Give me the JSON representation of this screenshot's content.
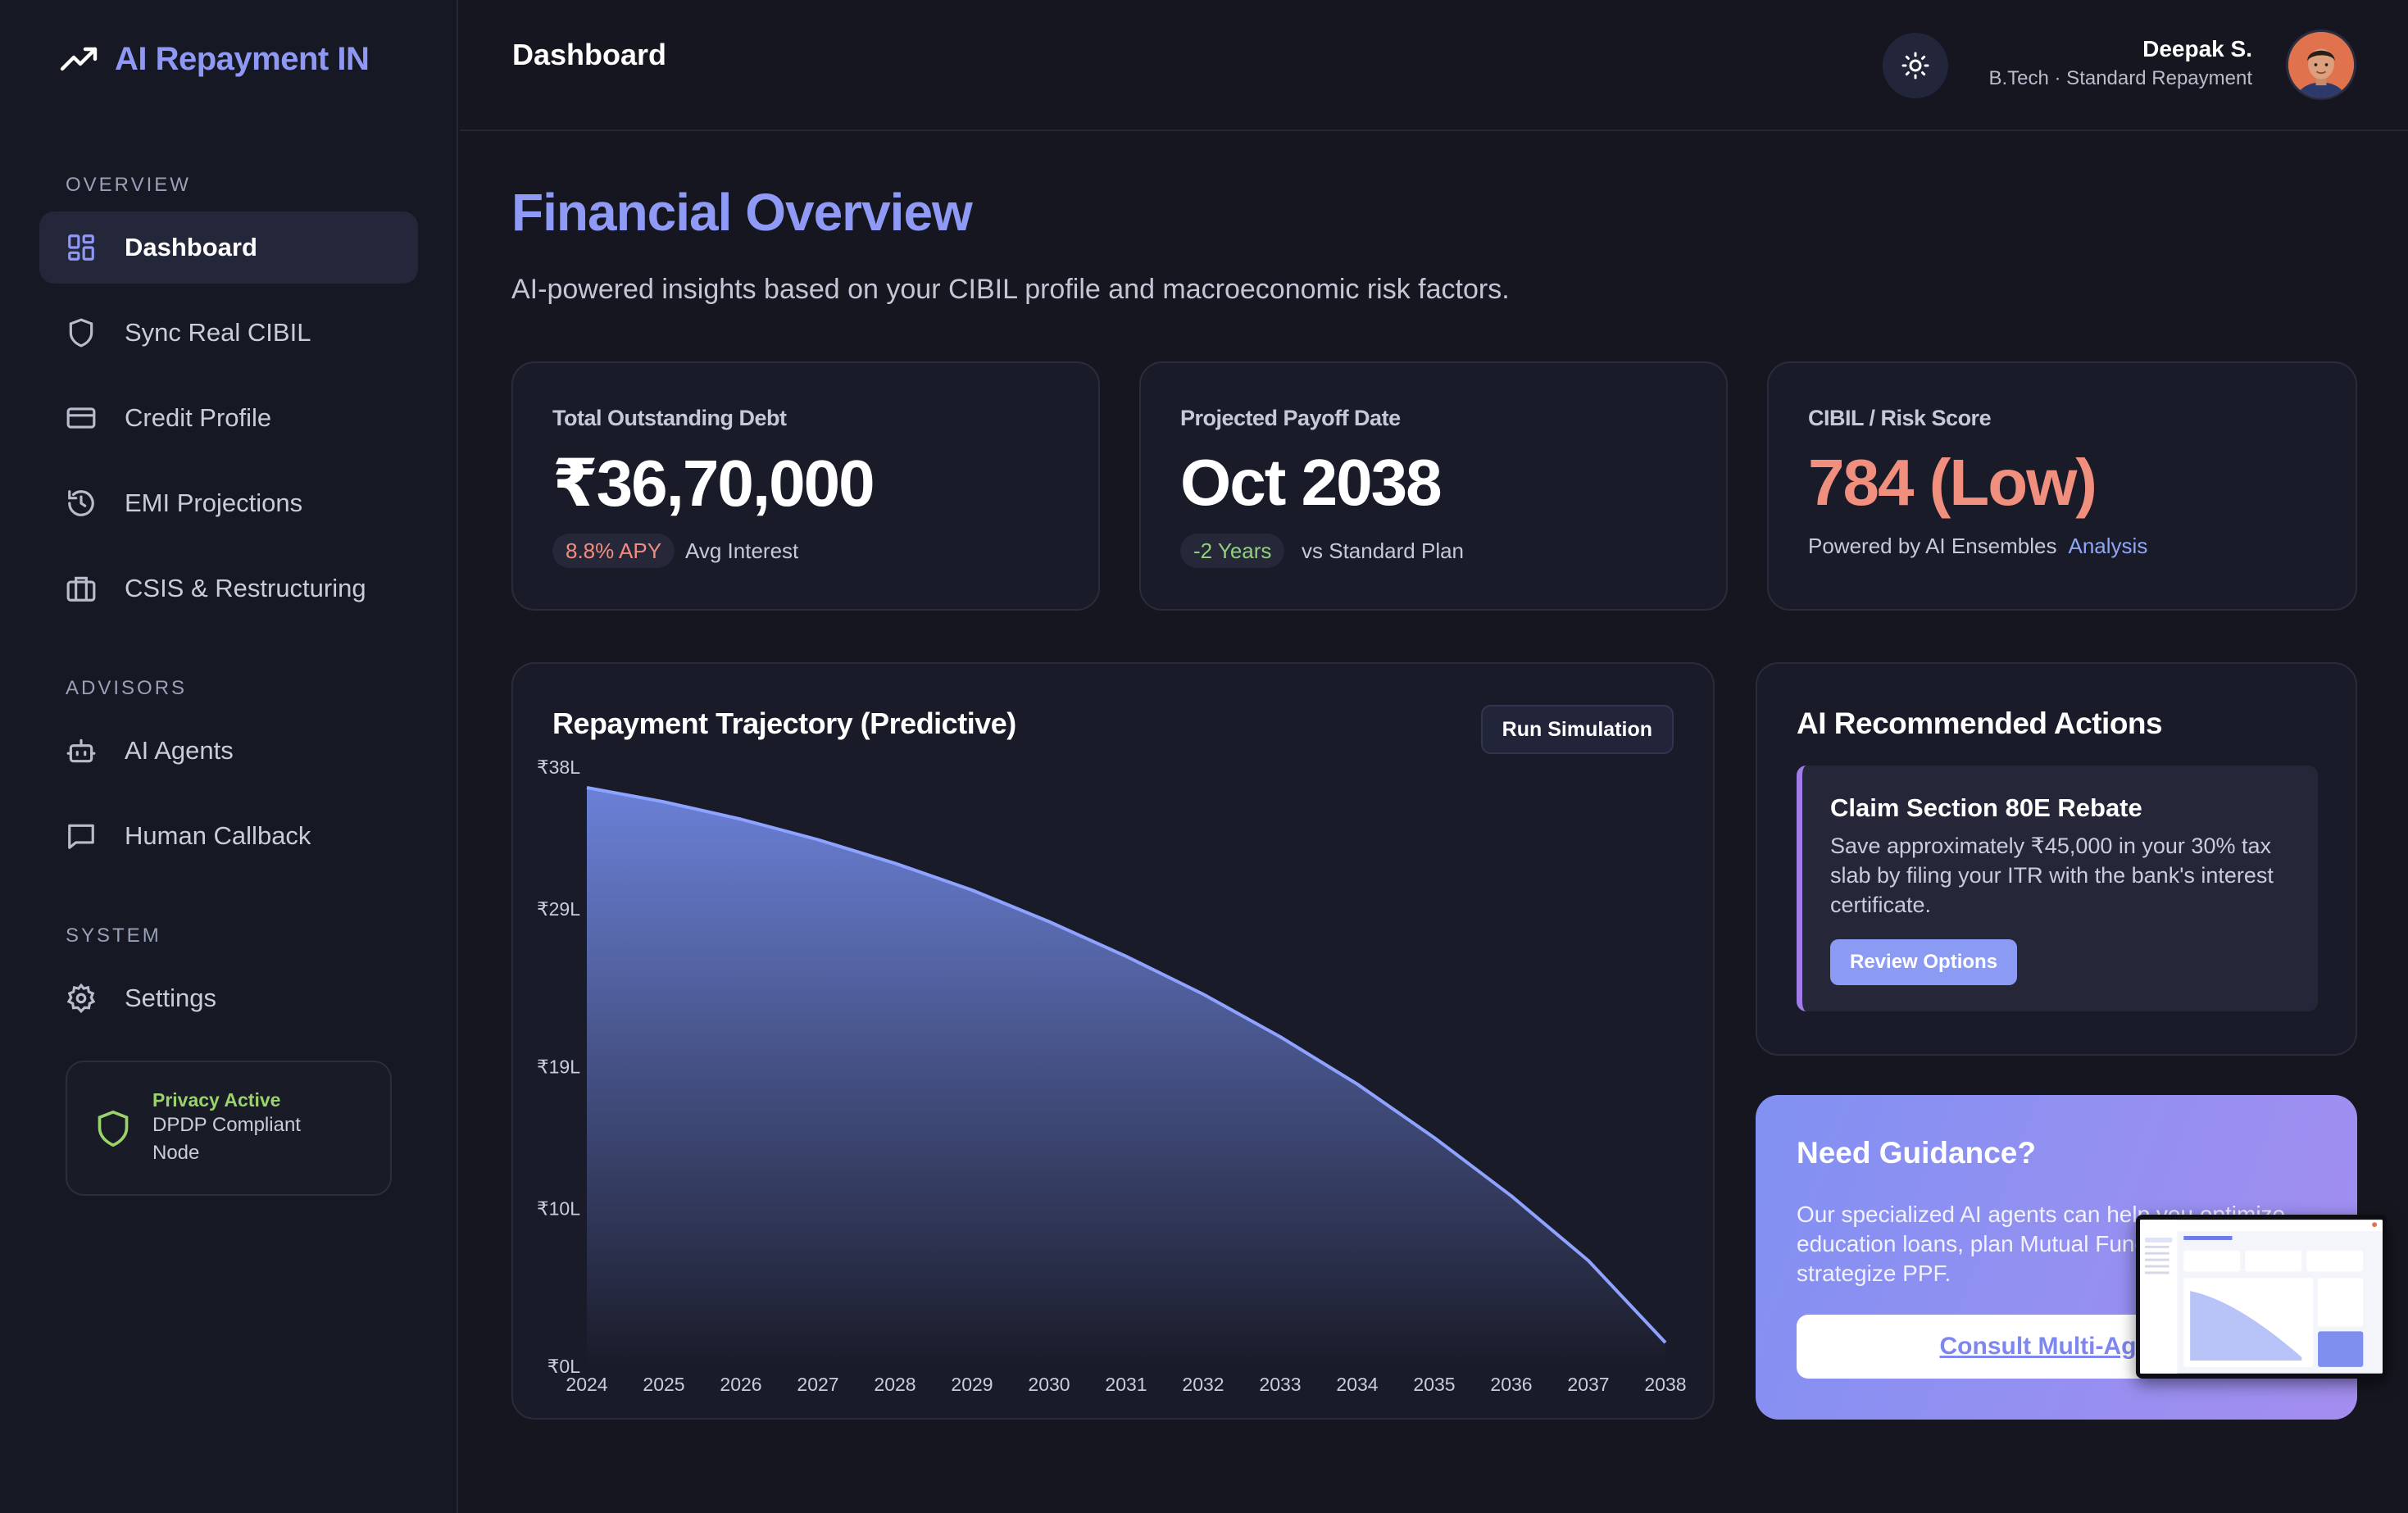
{
  "brand": {
    "name": "AI Repayment IN"
  },
  "sidebar": {
    "sections": [
      {
        "label": "OVERVIEW"
      },
      {
        "label": "ADVISORS"
      },
      {
        "label": "SYSTEM"
      }
    ],
    "items": [
      {
        "label": "Dashboard",
        "icon": "grid-icon",
        "active": true
      },
      {
        "label": "Sync Real CIBIL",
        "icon": "shield-icon"
      },
      {
        "label": "Credit Profile",
        "icon": "credit-card-icon"
      },
      {
        "label": "EMI Projections",
        "icon": "history-icon"
      },
      {
        "label": "CSIS & Restructuring",
        "icon": "briefcase-icon"
      },
      {
        "label": "AI Agents",
        "icon": "bot-icon"
      },
      {
        "label": "Human Callback",
        "icon": "message-icon"
      },
      {
        "label": "Settings",
        "icon": "gear-icon"
      }
    ],
    "privacy": {
      "title": "Privacy Active",
      "subtitle": "DPDP Compliant Node"
    }
  },
  "header": {
    "title": "Dashboard",
    "user": {
      "name": "Deepak S.",
      "subtitle": "B.Tech · Standard Repayment"
    }
  },
  "main": {
    "title": "Financial Overview",
    "subtitle": "AI-powered insights based on your CIBIL profile and macroeconomic risk factors."
  },
  "stats": [
    {
      "label": "Total Outstanding Debt",
      "value": "₹36,70,000",
      "pill": "8.8% APY",
      "note": "Avg Interest"
    },
    {
      "label": "Projected Payoff Date",
      "value": "Oct 2038",
      "pill": "-2 Years",
      "note": "vs Standard Plan"
    },
    {
      "label": "CIBIL / Risk Score",
      "value": "784 (Low)",
      "note": "Powered by AI Ensembles",
      "link": "Analysis"
    }
  ],
  "chart": {
    "title": "Repayment Trajectory (Predictive)",
    "button": "Run Simulation"
  },
  "chart_data": {
    "type": "area",
    "title": "Repayment Trajectory (Predictive)",
    "x": [
      2024,
      2025,
      2026,
      2027,
      2028,
      2029,
      2030,
      2031,
      2032,
      2033,
      2034,
      2035,
      2036,
      2037,
      2038
    ],
    "series": [
      {
        "values": [
          36.7,
          35.8,
          34.7,
          33.4,
          31.9,
          30.2,
          28.2,
          26.0,
          23.6,
          20.9,
          17.9,
          14.5,
          10.8,
          6.7,
          1.5
        ]
      }
    ],
    "x_tick_labels": [
      "2024",
      "2025",
      "2026",
      "2027",
      "2028",
      "2029",
      "2030",
      "2031",
      "2032",
      "2033",
      "2034",
      "2035",
      "2036",
      "2037",
      "2038"
    ],
    "y_ticks": [
      0,
      10,
      19,
      29,
      38
    ],
    "y_tick_labels": [
      "₹0L",
      "₹10L",
      "₹19L",
      "₹29L",
      "₹38L"
    ],
    "ylim": [
      0,
      38
    ],
    "grid": false,
    "colors": {
      "line": "#8ea3ff",
      "fill_top": "#6f86e0",
      "fill_bottom": "#1a1b28"
    }
  },
  "recommendations": {
    "title": "AI Recommended Actions",
    "item": {
      "title": "Claim Section 80E Rebate",
      "body": "Save approximately ₹45,000 in your 30% tax slab by filing your ITR with the bank's interest certificate.",
      "button": "Review Options"
    }
  },
  "guidance": {
    "title": "Need Guidance?",
    "body": "Our specialized AI agents can help you optimize education loans, plan Mutual Funds, and strategize PPF.",
    "button": "Consult Multi-Agent"
  }
}
